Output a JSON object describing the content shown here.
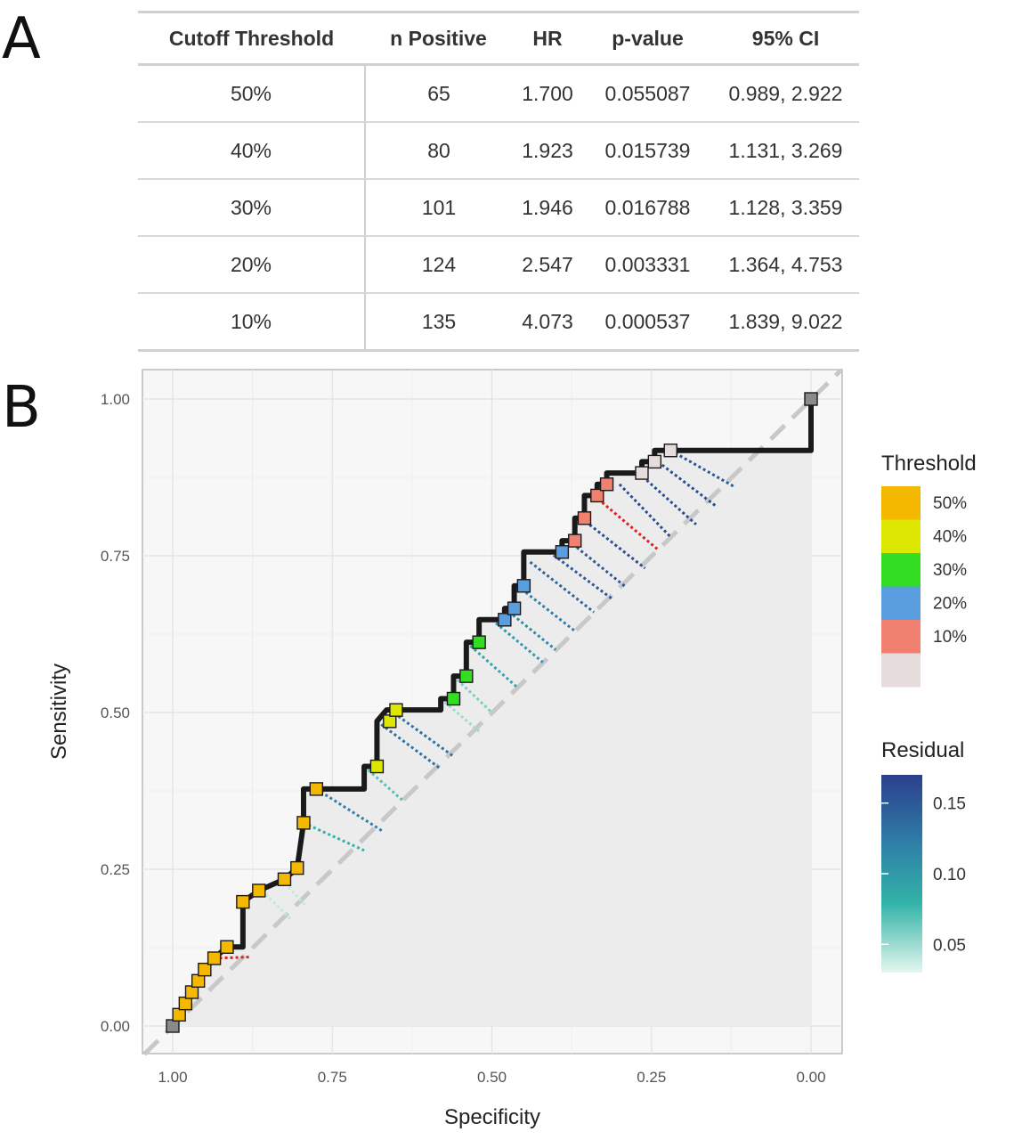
{
  "panel_a": {
    "label": "A",
    "headers": [
      "Cutoff Threshold",
      "n Positive",
      "HR",
      "p-value",
      "95% CI"
    ],
    "rows": [
      [
        "50%",
        "65",
        "1.700",
        "0.055087",
        "0.989, 2.922"
      ],
      [
        "40%",
        "80",
        "1.923",
        "0.015739",
        "1.131, 3.269"
      ],
      [
        "30%",
        "101",
        "1.946",
        "0.016788",
        "1.128, 3.359"
      ],
      [
        "20%",
        "124",
        "2.547",
        "0.003331",
        "1.364, 4.753"
      ],
      [
        "10%",
        "135",
        "4.073",
        "0.000537",
        "1.839, 9.022"
      ]
    ]
  },
  "panel_b": {
    "label": "B"
  },
  "chart_data": {
    "type": "line",
    "xlabel": "Specificity",
    "ylabel": "Sensitivity",
    "x_reversed": true,
    "xlim": [
      1.0,
      0.0
    ],
    "ylim": [
      0.0,
      1.0
    ],
    "x_ticks": [
      "1.00",
      "0.75",
      "0.50",
      "0.25",
      "0.00"
    ],
    "y_ticks": [
      "0.00",
      "0.25",
      "0.50",
      "0.75",
      "1.00"
    ],
    "grid": true,
    "reference_line": "dashed diagonal",
    "legend": {
      "threshold_title": "Threshold",
      "threshold_levels": [
        {
          "label": "50%",
          "color": "#f5b800"
        },
        {
          "label": "40%",
          "color": "#dde600"
        },
        {
          "label": "30%",
          "color": "#33dd22"
        },
        {
          "label": "20%",
          "color": "#5a9ee0"
        },
        {
          "label": "10%",
          "color": "#f08070"
        },
        {
          "label": "",
          "color": "#e6dcdc"
        }
      ],
      "residual_title": "Residual",
      "residual_ticks": [
        "0.15",
        "0.10",
        "0.05"
      ],
      "residual_range": [
        0.03,
        0.17
      ],
      "placement": "right"
    },
    "points": [
      {
        "x": 1.0,
        "y": 0.0,
        "g": 6
      },
      {
        "x": 0.99,
        "y": 0.018,
        "g": 0
      },
      {
        "x": 0.98,
        "y": 0.036,
        "g": 0
      },
      {
        "x": 0.97,
        "y": 0.054,
        "g": 0
      },
      {
        "x": 0.96,
        "y": 0.072,
        "g": 0
      },
      {
        "x": 0.95,
        "y": 0.09,
        "g": 0
      },
      {
        "x": 0.935,
        "y": 0.108,
        "g": 0
      },
      {
        "x": 0.915,
        "y": 0.126,
        "g": 0
      },
      {
        "x": 0.89,
        "y": 0.198,
        "g": 0
      },
      {
        "x": 0.865,
        "y": 0.216,
        "g": 0
      },
      {
        "x": 0.825,
        "y": 0.234,
        "g": 0
      },
      {
        "x": 0.805,
        "y": 0.252,
        "g": 0
      },
      {
        "x": 0.795,
        "y": 0.324,
        "g": 0
      },
      {
        "x": 0.775,
        "y": 0.378,
        "g": 0
      },
      {
        "x": 0.68,
        "y": 0.414,
        "g": 1
      },
      {
        "x": 0.66,
        "y": 0.486,
        "g": 1
      },
      {
        "x": 0.65,
        "y": 0.504,
        "g": 1
      },
      {
        "x": 0.56,
        "y": 0.522,
        "g": 2
      },
      {
        "x": 0.54,
        "y": 0.558,
        "g": 2
      },
      {
        "x": 0.52,
        "y": 0.612,
        "g": 2
      },
      {
        "x": 0.48,
        "y": 0.648,
        "g": 3
      },
      {
        "x": 0.465,
        "y": 0.666,
        "g": 3
      },
      {
        "x": 0.45,
        "y": 0.702,
        "g": 3
      },
      {
        "x": 0.39,
        "y": 0.756,
        "g": 3
      },
      {
        "x": 0.37,
        "y": 0.774,
        "g": 4
      },
      {
        "x": 0.355,
        "y": 0.81,
        "g": 4
      },
      {
        "x": 0.335,
        "y": 0.846,
        "g": 4
      },
      {
        "x": 0.32,
        "y": 0.864,
        "g": 4
      },
      {
        "x": 0.265,
        "y": 0.882,
        "g": 5
      },
      {
        "x": 0.245,
        "y": 0.9,
        "g": 5
      },
      {
        "x": 0.22,
        "y": 0.918,
        "g": 5
      },
      {
        "x": 0.0,
        "y": 1.0,
        "g": 6
      }
    ],
    "step_path": [
      [
        1.0,
        0.0
      ],
      [
        0.99,
        0.018
      ],
      [
        0.98,
        0.036
      ],
      [
        0.97,
        0.054
      ],
      [
        0.96,
        0.072
      ],
      [
        0.95,
        0.09
      ],
      [
        0.935,
        0.108
      ],
      [
        0.915,
        0.126
      ],
      [
        0.89,
        0.126
      ],
      [
        0.89,
        0.198
      ],
      [
        0.865,
        0.216
      ],
      [
        0.825,
        0.234
      ],
      [
        0.805,
        0.252
      ],
      [
        0.795,
        0.324
      ],
      [
        0.795,
        0.378
      ],
      [
        0.7,
        0.378
      ],
      [
        0.7,
        0.414
      ],
      [
        0.68,
        0.414
      ],
      [
        0.68,
        0.486
      ],
      [
        0.665,
        0.504
      ],
      [
        0.58,
        0.504
      ],
      [
        0.58,
        0.522
      ],
      [
        0.56,
        0.522
      ],
      [
        0.56,
        0.558
      ],
      [
        0.54,
        0.558
      ],
      [
        0.54,
        0.612
      ],
      [
        0.52,
        0.612
      ],
      [
        0.52,
        0.648
      ],
      [
        0.48,
        0.648
      ],
      [
        0.48,
        0.666
      ],
      [
        0.465,
        0.666
      ],
      [
        0.465,
        0.702
      ],
      [
        0.45,
        0.702
      ],
      [
        0.45,
        0.756
      ],
      [
        0.39,
        0.756
      ],
      [
        0.39,
        0.774
      ],
      [
        0.37,
        0.774
      ],
      [
        0.37,
        0.81
      ],
      [
        0.355,
        0.81
      ],
      [
        0.355,
        0.846
      ],
      [
        0.335,
        0.846
      ],
      [
        0.335,
        0.864
      ],
      [
        0.32,
        0.864
      ],
      [
        0.32,
        0.882
      ],
      [
        0.265,
        0.882
      ],
      [
        0.265,
        0.9
      ],
      [
        0.245,
        0.9
      ],
      [
        0.245,
        0.918
      ],
      [
        0.0,
        0.918
      ],
      [
        0.0,
        1.0
      ]
    ],
    "residual_segments": [
      {
        "from": [
          0.935,
          0.108
        ],
        "to": [
          0.88,
          0.11
        ],
        "r": 0.17,
        "color": "#e02020"
      },
      {
        "from": [
          0.86,
          0.216
        ],
        "to": [
          0.815,
          0.17
        ],
        "r": 0.04
      },
      {
        "from": [
          0.83,
          0.234
        ],
        "to": [
          0.79,
          0.19
        ],
        "r": 0.04
      },
      {
        "from": [
          0.795,
          0.324
        ],
        "to": [
          0.7,
          0.28
        ],
        "r": 0.08
      },
      {
        "from": [
          0.775,
          0.378
        ],
        "to": [
          0.67,
          0.31
        ],
        "r": 0.12
      },
      {
        "from": [
          0.7,
          0.414
        ],
        "to": [
          0.64,
          0.36
        ],
        "r": 0.07
      },
      {
        "from": [
          0.68,
          0.486
        ],
        "to": [
          0.58,
          0.41
        ],
        "r": 0.13
      },
      {
        "from": [
          0.66,
          0.504
        ],
        "to": [
          0.56,
          0.43
        ],
        "r": 0.13
      },
      {
        "from": [
          0.58,
          0.522
        ],
        "to": [
          0.52,
          0.47
        ],
        "r": 0.05
      },
      {
        "from": [
          0.56,
          0.558
        ],
        "to": [
          0.5,
          0.5
        ],
        "r": 0.06
      },
      {
        "from": [
          0.54,
          0.612
        ],
        "to": [
          0.46,
          0.54
        ],
        "r": 0.09
      },
      {
        "from": [
          0.5,
          0.648
        ],
        "to": [
          0.42,
          0.58
        ],
        "r": 0.1
      },
      {
        "from": [
          0.48,
          0.666
        ],
        "to": [
          0.4,
          0.6
        ],
        "r": 0.11
      },
      {
        "from": [
          0.46,
          0.702
        ],
        "to": [
          0.37,
          0.63
        ],
        "r": 0.12
      },
      {
        "from": [
          0.44,
          0.74
        ],
        "to": [
          0.34,
          0.66
        ],
        "r": 0.14
      },
      {
        "from": [
          0.41,
          0.756
        ],
        "to": [
          0.31,
          0.68
        ],
        "r": 0.15
      },
      {
        "from": [
          0.38,
          0.774
        ],
        "to": [
          0.29,
          0.7
        ],
        "r": 0.15
      },
      {
        "from": [
          0.36,
          0.81
        ],
        "to": [
          0.26,
          0.73
        ],
        "r": 0.16
      },
      {
        "from": [
          0.34,
          0.846
        ],
        "to": [
          0.24,
          0.76
        ],
        "r": 0.17,
        "color": "#e02020"
      },
      {
        "from": [
          0.3,
          0.864
        ],
        "to": [
          0.22,
          0.78
        ],
        "r": 0.16
      },
      {
        "from": [
          0.27,
          0.882
        ],
        "to": [
          0.18,
          0.8
        ],
        "r": 0.16
      },
      {
        "from": [
          0.24,
          0.9
        ],
        "to": [
          0.15,
          0.83
        ],
        "r": 0.16
      },
      {
        "from": [
          0.22,
          0.918
        ],
        "to": [
          0.12,
          0.86
        ],
        "r": 0.15
      }
    ]
  }
}
